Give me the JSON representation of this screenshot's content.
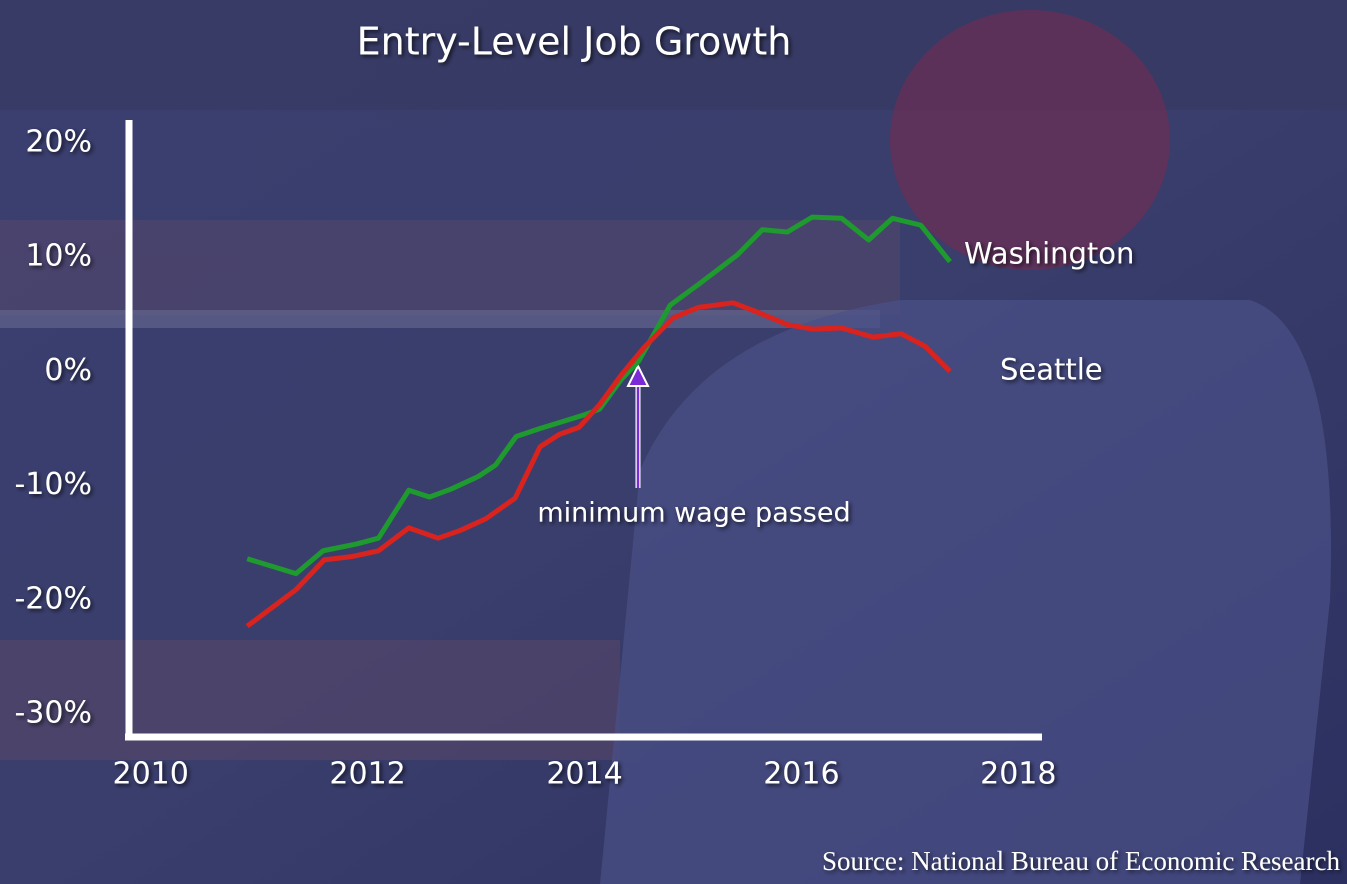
{
  "chart_data": {
    "type": "line",
    "title": "Entry-Level Job Growth",
    "annotation": "minimum wage passed",
    "source": "Source: National Bureau of Economic Research",
    "xlim": [
      2009.8,
      2018.2
    ],
    "ylim": [
      -32,
      22
    ],
    "xticks": [
      2010,
      2012,
      2014,
      2016,
      2018
    ],
    "yticks": [
      {
        "value": 20,
        "label": "20%"
      },
      {
        "value": 10,
        "label": "10%"
      },
      {
        "value": 0,
        "label": "0%"
      },
      {
        "value": -10,
        "label": "-10%"
      },
      {
        "value": -20,
        "label": "-20%"
      },
      {
        "value": -30,
        "label": "-30%"
      }
    ],
    "series": [
      {
        "name": "Washington",
        "color": "#1e9a2e",
        "x": [
          2010.89,
          2011.34,
          2011.59,
          2011.9,
          2012.1,
          2012.38,
          2012.57,
          2012.77,
          2013.02,
          2013.18,
          2013.37,
          2013.59,
          2013.83,
          2014.0,
          2014.14,
          2014.34,
          2014.5,
          2014.79,
          2015.05,
          2015.41,
          2015.64,
          2015.87,
          2016.1,
          2016.37,
          2016.62,
          2016.84,
          2017.1,
          2017.37
        ],
        "values": [
          -16.4,
          -17.7,
          -15.7,
          -15.1,
          -14.6,
          -10.4,
          -11.0,
          -10.3,
          -9.2,
          -8.2,
          -5.7,
          -5.0,
          -4.3,
          -3.8,
          -3.3,
          -0.7,
          0.9,
          5.8,
          7.6,
          10.2,
          12.4,
          12.2,
          13.5,
          13.4,
          11.5,
          13.4,
          12.8,
          9.6
        ]
      },
      {
        "name": "Seattle",
        "color": "#d8231f",
        "x": [
          2010.89,
          2011.34,
          2011.6,
          2011.86,
          2012.1,
          2012.38,
          2012.65,
          2012.86,
          2013.09,
          2013.36,
          2013.59,
          2013.77,
          2013.95,
          2014.14,
          2014.34,
          2014.55,
          2014.82,
          2015.05,
          2015.37,
          2015.59,
          2015.87,
          2016.1,
          2016.37,
          2016.66,
          2016.92,
          2017.14,
          2017.37
        ],
        "values": [
          -22.3,
          -19.1,
          -16.5,
          -16.2,
          -15.7,
          -13.7,
          -14.6,
          -13.9,
          -12.9,
          -11.1,
          -6.6,
          -5.5,
          -4.9,
          -2.9,
          -0.3,
          2.1,
          4.7,
          5.6,
          6.0,
          5.2,
          4.1,
          3.7,
          3.8,
          3.0,
          3.3,
          2.2,
          0.0
        ]
      }
    ]
  }
}
